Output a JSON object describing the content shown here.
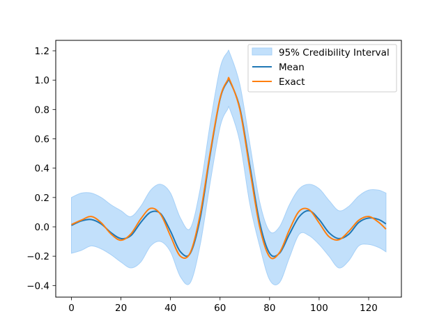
{
  "chart_data": {
    "type": "line",
    "title": "",
    "xlabel": "",
    "ylabel": "",
    "xlim": [
      -6.35,
      133.35
    ],
    "ylim": [
      -0.475,
      1.265
    ],
    "grid": false,
    "legend_position": "upper right",
    "x_ticks": [
      0,
      20,
      40,
      60,
      80,
      100,
      120
    ],
    "x_tick_labels": [
      "0",
      "20",
      "40",
      "60",
      "80",
      "100",
      "120"
    ],
    "y_ticks": [
      -0.4,
      -0.2,
      0.0,
      0.2,
      0.4,
      0.6,
      0.8,
      1.0,
      1.2
    ],
    "y_tick_labels": [
      "−0.4",
      "−0.2",
      "0.0",
      "0.2",
      "0.4",
      "0.6",
      "0.8",
      "1.0",
      "1.2"
    ],
    "x": [
      0,
      4,
      8,
      12,
      16,
      20,
      24,
      28,
      32,
      36,
      40,
      44,
      48,
      52,
      56,
      60,
      63,
      64,
      68,
      72,
      76,
      80,
      84,
      88,
      92,
      96,
      100,
      104,
      108,
      112,
      116,
      120,
      124,
      127
    ],
    "series": [
      {
        "name": "95% Credibility Interval",
        "type": "area",
        "color": "#c2e0fb",
        "edge_color": "#a6d0f7",
        "lower": [
          -0.18,
          -0.16,
          -0.13,
          -0.15,
          -0.19,
          -0.24,
          -0.28,
          -0.24,
          -0.13,
          -0.1,
          -0.17,
          -0.34,
          -0.38,
          -0.12,
          0.3,
          0.68,
          0.8,
          0.8,
          0.58,
          0.16,
          -0.13,
          -0.36,
          -0.38,
          -0.21,
          -0.05,
          -0.06,
          -0.12,
          -0.2,
          -0.28,
          -0.23,
          -0.13,
          -0.12,
          -0.14,
          -0.17
        ],
        "upper": [
          0.2,
          0.23,
          0.23,
          0.2,
          0.15,
          0.11,
          0.07,
          0.14,
          0.25,
          0.29,
          0.23,
          0.06,
          -0.01,
          0.26,
          0.7,
          1.08,
          1.19,
          1.18,
          0.97,
          0.57,
          0.17,
          -0.03,
          0.0,
          0.15,
          0.26,
          0.29,
          0.26,
          0.18,
          0.11,
          0.14,
          0.21,
          0.25,
          0.25,
          0.23
        ]
      },
      {
        "name": "Mean",
        "type": "line",
        "color": "#1f77b4",
        "values": [
          0.01,
          0.04,
          0.05,
          0.02,
          -0.04,
          -0.08,
          -0.06,
          0.03,
          0.1,
          0.09,
          -0.03,
          -0.17,
          -0.18,
          0.06,
          0.49,
          0.87,
          0.99,
          0.99,
          0.81,
          0.42,
          0.03,
          -0.18,
          -0.18,
          -0.05,
          0.07,
          0.11,
          0.05,
          -0.04,
          -0.08,
          -0.05,
          0.03,
          0.06,
          0.05,
          0.02
        ]
      },
      {
        "name": "Exact",
        "type": "line",
        "color": "#ff7f0e",
        "values": [
          0.0156,
          0.0458,
          0.0704,
          0.0284,
          -0.0492,
          -0.0913,
          -0.0485,
          0.054,
          0.1261,
          0.085,
          -0.0623,
          -0.2004,
          -0.1757,
          0.0861,
          0.5046,
          0.8759,
          0.9974,
          0.9974,
          0.8,
          0.3952,
          0.0,
          -0.2036,
          -0.1756,
          -0.0204,
          0.1076,
          0.1164,
          0.0271,
          -0.0672,
          -0.0878,
          -0.0302,
          0.0446,
          0.0703,
          0.0317,
          -0.0156
        ]
      }
    ],
    "legend": [
      "95% Credibility Interval",
      "Mean",
      "Exact"
    ]
  }
}
